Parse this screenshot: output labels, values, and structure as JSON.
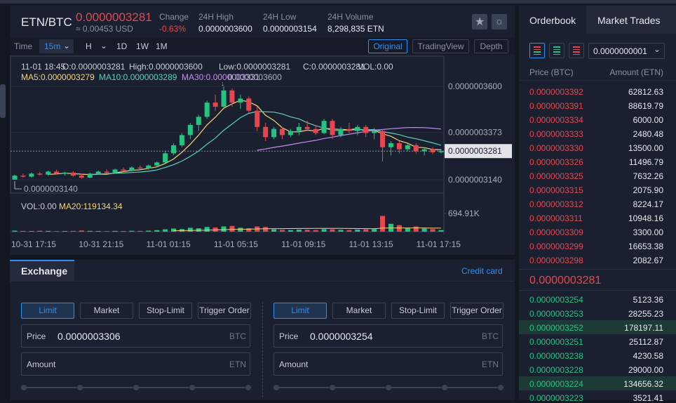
{
  "top": {
    "pair": "ETN/BTC",
    "price": "0.0000003281",
    "price_usd": "≈ 0.00453 USD",
    "stats": [
      {
        "label": "Change",
        "value": "-0.63%"
      },
      {
        "label": "24H High",
        "value": "0.0000003600"
      },
      {
        "label": "24H Low",
        "value": "0.0000003154"
      },
      {
        "label": "24H Volume",
        "value": "8,298,835 ETN"
      }
    ]
  },
  "toolbar": {
    "time": "Time",
    "interval": "15m",
    "hour": "H",
    "periods": [
      "1D",
      "1W",
      "1M"
    ],
    "views": [
      "Original",
      "TradingView",
      "Depth"
    ]
  },
  "chart_data": {
    "type": "candlestick",
    "info": [
      "11-01 18:45",
      "O:0.0000003281",
      "High:0.0000003600",
      "Low:0.0000003281",
      "C:0.0000003281",
      "VOL:0.00"
    ],
    "ma": [
      {
        "label": "MA5:0.0000003279",
        "color": "#f3d57a"
      },
      {
        "label": "MA10:0.0000003289",
        "color": "#5ad1bd"
      },
      {
        "label": "MA30:0.0000003331",
        "color": "#c38cf0"
      }
    ],
    "ylim": [
      3.074e-07,
      3.749e-07
    ],
    "yticks": [
      {
        "value": 3.6e-07,
        "label": "0.0000003600"
      },
      {
        "value": 3.373e-07,
        "label": "0.0000003373"
      },
      {
        "value": 3.14e-07,
        "label": "0.0000003140"
      }
    ],
    "current_price": {
      "value": 3.281e-07,
      "label": "0.0000003281"
    },
    "high_label": "0.0000003600",
    "low_label": "0.0000003140",
    "up_color": "#26c281",
    "down_color": "#e6474f",
    "candles": [
      [
        3.14e-07,
        3.165e-07,
        3.14e-07,
        3.16e-07
      ],
      [
        3.16e-07,
        3.17e-07,
        3.15e-07,
        3.155e-07
      ],
      [
        3.155e-07,
        3.175e-07,
        3.15e-07,
        3.17e-07
      ],
      [
        3.17e-07,
        3.178e-07,
        3.16e-07,
        3.165e-07
      ],
      [
        3.165e-07,
        3.185e-07,
        3.16e-07,
        3.18e-07
      ],
      [
        3.18e-07,
        3.19e-07,
        3.165e-07,
        3.17e-07
      ],
      [
        3.17e-07,
        3.18e-07,
        3.16e-07,
        3.175e-07
      ],
      [
        3.175e-07,
        3.182e-07,
        3.155e-07,
        3.16e-07
      ],
      [
        3.16e-07,
        3.17e-07,
        3.145e-07,
        3.15e-07
      ],
      [
        3.15e-07,
        3.175e-07,
        3.148e-07,
        3.17e-07
      ],
      [
        3.17e-07,
        3.185e-07,
        3.165e-07,
        3.18e-07
      ],
      [
        3.18e-07,
        3.19e-07,
        3.17e-07,
        3.175e-07
      ],
      [
        3.175e-07,
        3.195e-07,
        3.17e-07,
        3.19e-07
      ],
      [
        3.19e-07,
        3.2e-07,
        3.18e-07,
        3.185e-07
      ],
      [
        3.185e-07,
        3.205e-07,
        3.18e-07,
        3.2e-07
      ],
      [
        3.2e-07,
        3.21e-07,
        3.19e-07,
        3.195e-07
      ],
      [
        3.195e-07,
        3.215e-07,
        3.19e-07,
        3.21e-07
      ],
      [
        3.21e-07,
        3.23e-07,
        3.205e-07,
        3.225e-07
      ],
      [
        3.225e-07,
        3.28e-07,
        3.22e-07,
        3.27e-07
      ],
      [
        3.27e-07,
        3.32e-07,
        3.26e-07,
        3.31e-07
      ],
      [
        3.31e-07,
        3.37e-07,
        3.3e-07,
        3.36e-07
      ],
      [
        3.36e-07,
        3.42e-07,
        3.34e-07,
        3.41e-07
      ],
      [
        3.41e-07,
        3.46e-07,
        3.38e-07,
        3.45e-07
      ],
      [
        3.45e-07,
        3.53e-07,
        3.44e-07,
        3.52e-07
      ],
      [
        3.52e-07,
        3.56e-07,
        3.48e-07,
        3.5e-07
      ],
      [
        3.5e-07,
        3.6e-07,
        3.495e-07,
        3.58e-07
      ],
      [
        3.58e-07,
        3.59e-07,
        3.5e-07,
        3.52e-07
      ],
      [
        3.52e-07,
        3.56e-07,
        3.49e-07,
        3.54e-07
      ],
      [
        3.54e-07,
        3.55e-07,
        3.47e-07,
        3.48e-07
      ],
      [
        3.48e-07,
        3.5e-07,
        3.38e-07,
        3.4e-07
      ],
      [
        3.4e-07,
        3.42e-07,
        3.33e-07,
        3.35e-07
      ],
      [
        3.35e-07,
        3.4e-07,
        3.34e-07,
        3.39e-07
      ],
      [
        3.39e-07,
        3.4e-07,
        3.34e-07,
        3.36e-07
      ],
      [
        3.36e-07,
        3.39e-07,
        3.35e-07,
        3.38e-07
      ],
      [
        3.38e-07,
        3.42e-07,
        3.36e-07,
        3.4e-07
      ],
      [
        3.4e-07,
        3.43e-07,
        3.38e-07,
        3.39e-07
      ],
      [
        3.39e-07,
        3.41e-07,
        3.36e-07,
        3.37e-07
      ],
      [
        3.37e-07,
        3.44e-07,
        3.365e-07,
        3.43e-07
      ],
      [
        3.43e-07,
        3.44e-07,
        3.34e-07,
        3.36e-07
      ],
      [
        3.36e-07,
        3.4e-07,
        3.35e-07,
        3.39e-07
      ],
      [
        3.39e-07,
        3.42e-07,
        3.37e-07,
        3.38e-07
      ],
      [
        3.38e-07,
        3.41e-07,
        3.36e-07,
        3.4e-07
      ],
      [
        3.4e-07,
        3.41e-07,
        3.35e-07,
        3.37e-07
      ],
      [
        3.37e-07,
        3.395e-07,
        3.34e-07,
        3.38e-07
      ],
      [
        3.38e-07,
        3.39e-07,
        3.23e-07,
        3.3e-07
      ],
      [
        3.3e-07,
        3.33e-07,
        3.26e-07,
        3.32e-07
      ],
      [
        3.32e-07,
        3.33e-07,
        3.27e-07,
        3.29e-07
      ],
      [
        3.29e-07,
        3.32e-07,
        3.28e-07,
        3.31e-07
      ],
      [
        3.31e-07,
        3.32e-07,
        3.27e-07,
        3.28e-07
      ],
      [
        3.28e-07,
        3.3e-07,
        3.26e-07,
        3.29e-07
      ],
      [
        3.29e-07,
        3.3e-07,
        3.265e-07,
        3.275e-07
      ],
      [
        3.275e-07,
        3.29e-07,
        3.27e-07,
        3.281e-07
      ]
    ],
    "volume": {
      "info": [
        "VOL:0.00",
        "MA20:119134.34"
      ],
      "ma_color": "#f3d57a",
      "ylim": [
        0,
        855000
      ],
      "yticks": [
        {
          "value": 694910,
          "label": "694.91K"
        }
      ],
      "values": [
        40000,
        30000,
        25000,
        35000,
        30000,
        20000,
        25000,
        30000,
        45000,
        30000,
        25000,
        20000,
        30000,
        25000,
        35000,
        30000,
        40000,
        60000,
        90000,
        120000,
        100000,
        150000,
        130000,
        180000,
        160000,
        200000,
        220000,
        150000,
        130000,
        200000,
        180000,
        90000,
        70000,
        60000,
        80000,
        70000,
        60000,
        100000,
        90000,
        70000,
        60000,
        80000,
        90000,
        100000,
        600000,
        300000,
        250000,
        150000,
        200000,
        120000,
        100000,
        60000
      ]
    },
    "x_labels": [
      "10-31 17:15",
      "10-31 21:15",
      "11-01 01:15",
      "11-01 05:15",
      "11-01 09:15",
      "11-01 13:15",
      "11-01 17:15"
    ]
  },
  "orderbook": {
    "tabs": [
      "Orderbook",
      "Market Trades"
    ],
    "precision": "0.0000000001",
    "columns": [
      "Price (BTC)",
      "Amount (ETN)"
    ],
    "asks": [
      [
        "0.0000003392",
        "62812.63"
      ],
      [
        "0.0000003391",
        "88619.79"
      ],
      [
        "0.0000003334",
        "6000.00"
      ],
      [
        "0.0000003333",
        "2480.48"
      ],
      [
        "0.0000003330",
        "13500.00"
      ],
      [
        "0.0000003326",
        "11496.79"
      ],
      [
        "0.0000003325",
        "7632.26"
      ],
      [
        "0.0000003315",
        "2075.90"
      ],
      [
        "0.0000003312",
        "8224.17"
      ],
      [
        "0.0000003311",
        "10948.16"
      ],
      [
        "0.0000003309",
        "3300.00"
      ],
      [
        "0.0000003299",
        "16653.38"
      ],
      [
        "0.0000003298",
        "2082.67"
      ]
    ],
    "last": "0.0000003281",
    "bids": [
      [
        "0.0000003254",
        "5123.36"
      ],
      [
        "0.0000003253",
        "28255.23"
      ],
      [
        "0.0000003252",
        "178197.11"
      ],
      [
        "0.0000003251",
        "25112.87"
      ],
      [
        "0.0000003238",
        "4230.58"
      ],
      [
        "0.0000003228",
        "29000.00"
      ],
      [
        "0.0000003224",
        "134656.32"
      ],
      [
        "0.0000003223",
        "3521.41"
      ]
    ]
  },
  "exchange": {
    "tab": "Exchange",
    "link": "Credit card",
    "forms": [
      {
        "types": [
          "Limit",
          "Market",
          "Stop-Limit",
          "Trigger Order"
        ],
        "price_label": "Price",
        "price": "0.0000003306",
        "price_unit": "BTC",
        "amount_label": "Amount",
        "amount_unit": "ETN"
      },
      {
        "types": [
          "Limit",
          "Market",
          "Stop-Limit",
          "Trigger Order"
        ],
        "price_label": "Price",
        "price": "0.0000003254",
        "price_unit": "BTC",
        "amount_label": "Amount",
        "amount_unit": "ETN"
      }
    ]
  }
}
